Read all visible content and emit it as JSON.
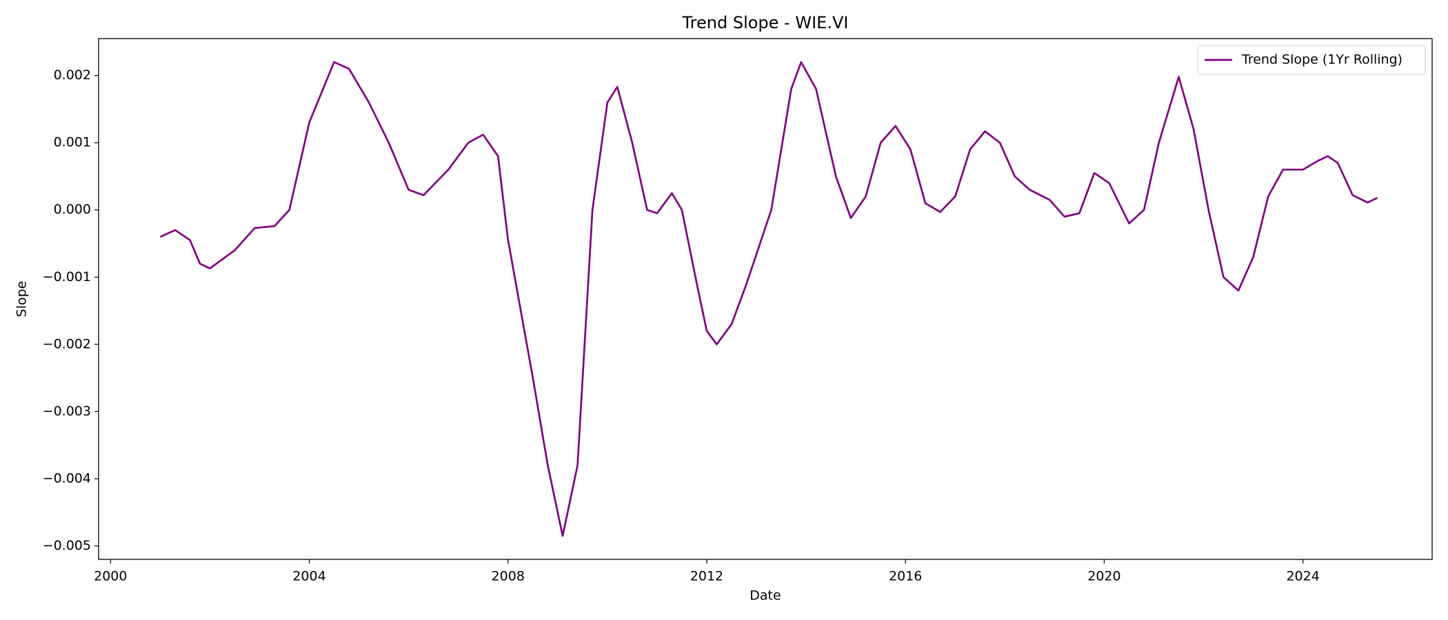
{
  "chart_data": {
    "type": "line",
    "title": "Trend Slope - WIE.VI",
    "xlabel": "Date",
    "ylabel": "Slope",
    "x": [
      2001.0,
      2001.3,
      2001.6,
      2001.8,
      2002.0,
      2002.5,
      2002.9,
      2003.3,
      2003.6,
      2004.0,
      2004.5,
      2004.8,
      2005.2,
      2005.6,
      2006.0,
      2006.3,
      2006.8,
      2007.2,
      2007.5,
      2007.8,
      2008.0,
      2008.5,
      2008.8,
      2009.1,
      2009.4,
      2009.7,
      2010.0,
      2010.2,
      2010.5,
      2010.8,
      2011.0,
      2011.3,
      2011.5,
      2011.8,
      2012.0,
      2012.2,
      2012.5,
      2012.8,
      2013.3,
      2013.7,
      2013.9,
      2014.2,
      2014.6,
      2014.9,
      2015.2,
      2015.5,
      2015.8,
      2016.1,
      2016.4,
      2016.7,
      2017.0,
      2017.3,
      2017.6,
      2017.9,
      2018.2,
      2018.5,
      2018.9,
      2019.2,
      2019.5,
      2019.8,
      2020.1,
      2020.5,
      2020.8,
      2021.1,
      2021.5,
      2021.8,
      2022.1,
      2022.4,
      2022.7,
      2023.0,
      2023.3,
      2023.6,
      2024.0,
      2024.3,
      2024.5,
      2024.7,
      2025.0,
      2025.3,
      2025.5
    ],
    "series": [
      {
        "name": "Trend Slope (1Yr Rolling)",
        "color": "#800080",
        "values": [
          -0.0004,
          -0.0003,
          -0.00045,
          -0.0008,
          -0.00087,
          -0.0006,
          -0.00027,
          -0.00024,
          0.0,
          0.0013,
          0.0022,
          0.0021,
          0.0016,
          0.001,
          0.0003,
          0.00022,
          0.0006,
          0.001,
          0.00112,
          0.0008,
          -0.00044,
          -0.0025,
          -0.0038,
          -0.00485,
          -0.0038,
          0.0,
          0.0016,
          0.00183,
          0.001,
          0.0,
          -5e-05,
          0.00025,
          0.0,
          -0.0011,
          -0.0018,
          -0.002,
          -0.0017,
          -0.0011,
          0.0,
          0.0018,
          0.0022,
          0.0018,
          0.0005,
          -0.00012,
          0.0002,
          0.001,
          0.00125,
          0.0009,
          0.0001,
          -3e-05,
          0.0002,
          0.0009,
          0.00117,
          0.001,
          0.0005,
          0.0003,
          0.00015,
          -0.0001,
          -5e-05,
          0.00055,
          0.0004,
          -0.0002,
          0.0,
          0.001,
          0.00198,
          0.0012,
          0.0,
          -0.001,
          -0.0012,
          -0.0007,
          0.0002,
          0.0006,
          0.0006,
          0.00073,
          0.0008,
          0.0007,
          0.00022,
          0.00011,
          0.00018
        ]
      }
    ],
    "xlim": [
      1999.76,
      2026.6
    ],
    "xticks": [
      2000,
      2004,
      2008,
      2012,
      2016,
      2020,
      2024
    ],
    "ylim": [
      -0.0052,
      0.00255
    ],
    "yticks": [
      {
        "value": -0.005,
        "label": "−0.005"
      },
      {
        "value": -0.004,
        "label": "−0.004"
      },
      {
        "value": -0.003,
        "label": "−0.003"
      },
      {
        "value": -0.002,
        "label": "−0.002"
      },
      {
        "value": -0.001,
        "label": "−0.001"
      },
      {
        "value": 0,
        "label": "0.000"
      },
      0.001,
      0.002
    ],
    "grid": false,
    "legend": "upper right"
  }
}
